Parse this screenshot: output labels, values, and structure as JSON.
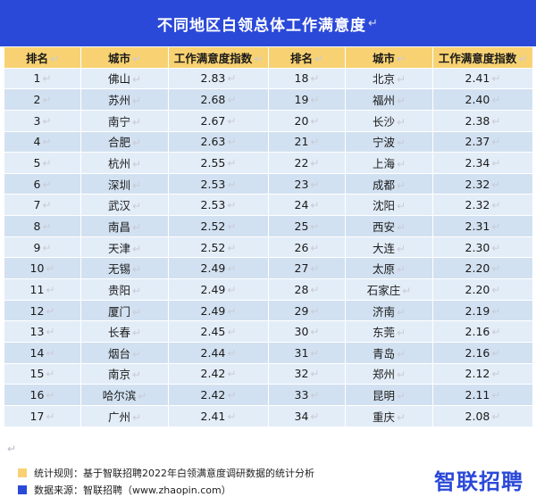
{
  "title": "不同地区白领总体工作满意度",
  "return_mark": "↵",
  "headers": [
    "排名",
    "城市",
    "工作满意度指数",
    "排名",
    "城市",
    "工作满意度指数"
  ],
  "colors": {
    "title_bg": "#2b49d8",
    "header_bg": "#f8d272",
    "row_light": "#e3edf8",
    "row_dark": "#d2e1f1",
    "swatch_rule": "#f8d272",
    "swatch_source": "#2b49d8"
  },
  "rows": [
    {
      "rank_left": "1",
      "city_left": "佛山",
      "score_left": "2.83",
      "rank_right": "18",
      "city_right": "北京",
      "score_right": "2.41"
    },
    {
      "rank_left": "2",
      "city_left": "苏州",
      "score_left": "2.68",
      "rank_right": "19",
      "city_right": "福州",
      "score_right": "2.40"
    },
    {
      "rank_left": "3",
      "city_left": "南宁",
      "score_left": "2.67",
      "rank_right": "20",
      "city_right": "长沙",
      "score_right": "2.38"
    },
    {
      "rank_left": "4",
      "city_left": "合肥",
      "score_left": "2.63",
      "rank_right": "21",
      "city_right": "宁波",
      "score_right": "2.37"
    },
    {
      "rank_left": "5",
      "city_left": "杭州",
      "score_left": "2.55",
      "rank_right": "22",
      "city_right": "上海",
      "score_right": "2.34"
    },
    {
      "rank_left": "6",
      "city_left": "深圳",
      "score_left": "2.53",
      "rank_right": "23",
      "city_right": "成都",
      "score_right": "2.32"
    },
    {
      "rank_left": "7",
      "city_left": "武汉",
      "score_left": "2.53",
      "rank_right": "24",
      "city_right": "沈阳",
      "score_right": "2.32"
    },
    {
      "rank_left": "8",
      "city_left": "南昌",
      "score_left": "2.52",
      "rank_right": "25",
      "city_right": "西安",
      "score_right": "2.31"
    },
    {
      "rank_left": "9",
      "city_left": "天津",
      "score_left": "2.52",
      "rank_right": "26",
      "city_right": "大连",
      "score_right": "2.30"
    },
    {
      "rank_left": "10",
      "city_left": "无锡",
      "score_left": "2.49",
      "rank_right": "27",
      "city_right": "太原",
      "score_right": "2.20"
    },
    {
      "rank_left": "11",
      "city_left": "贵阳",
      "score_left": "2.49",
      "rank_right": "28",
      "city_right": "石家庄",
      "score_right": "2.20"
    },
    {
      "rank_left": "12",
      "city_left": "厦门",
      "score_left": "2.49",
      "rank_right": "29",
      "city_right": "济南",
      "score_right": "2.19"
    },
    {
      "rank_left": "13",
      "city_left": "长春",
      "score_left": "2.45",
      "rank_right": "30",
      "city_right": "东莞",
      "score_right": "2.16"
    },
    {
      "rank_left": "14",
      "city_left": "烟台",
      "score_left": "2.44",
      "rank_right": "31",
      "city_right": "青岛",
      "score_right": "2.16"
    },
    {
      "rank_left": "15",
      "city_left": "南京",
      "score_left": "2.42",
      "rank_right": "32",
      "city_right": "郑州",
      "score_right": "2.12"
    },
    {
      "rank_left": "16",
      "city_left": "哈尔滨",
      "score_left": "2.42",
      "rank_right": "33",
      "city_right": "昆明",
      "score_right": "2.11"
    },
    {
      "rank_left": "17",
      "city_left": "广州",
      "score_left": "2.41",
      "rank_right": "34",
      "city_right": "重庆",
      "score_right": "2.08"
    }
  ],
  "footer": {
    "rule": "统计规则：基于智联招聘2022年白领满意度调研数据的统计分析",
    "source": "数据来源：智联招聘（www.zhaopin.com）"
  },
  "logo_text": "智联招聘"
}
